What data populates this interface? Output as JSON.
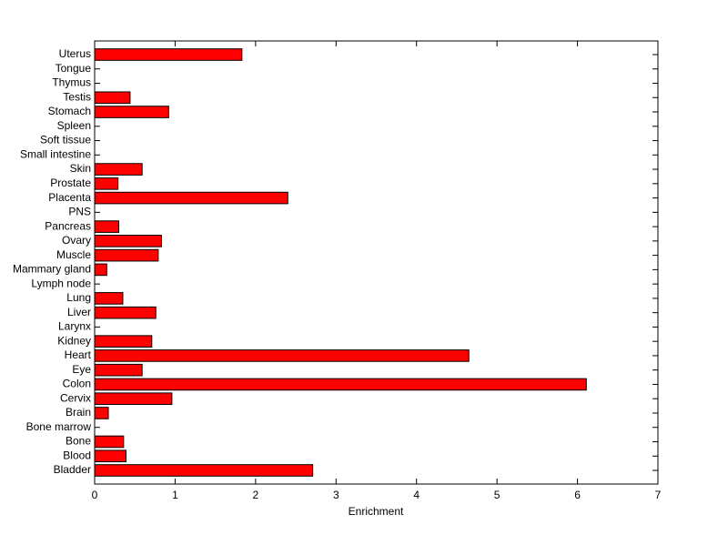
{
  "chart_data": {
    "type": "barh",
    "xlabel": "Enrichment",
    "categories": [
      "Bladder",
      "Blood",
      "Bone",
      "Bone marrow",
      "Brain",
      "Cervix",
      "Colon",
      "Eye",
      "Heart",
      "Kidney",
      "Larynx",
      "Liver",
      "Lung",
      "Lymph node",
      "Mammary gland",
      "Muscle",
      "Ovary",
      "Pancreas",
      "PNS",
      "Placenta",
      "Prostate",
      "Skin",
      "Small intestine",
      "Soft tissue",
      "Spleen",
      "Stomach",
      "Testis",
      "Thymus",
      "Tongue",
      "Uterus"
    ],
    "values": [
      2.71,
      0.39,
      0.36,
      0,
      0.17,
      0.96,
      6.11,
      0.59,
      4.65,
      0.71,
      0,
      0.76,
      0.35,
      0,
      0.15,
      0.79,
      0.83,
      0.3,
      0,
      2.4,
      0.29,
      0.59,
      0,
      0,
      0,
      0.92,
      0.44,
      0,
      0,
      1.83
    ],
    "color": "#ff0000",
    "xlim": [
      0,
      7
    ],
    "xticks": [
      0,
      1,
      2,
      3,
      4,
      5,
      6,
      7
    ]
  }
}
